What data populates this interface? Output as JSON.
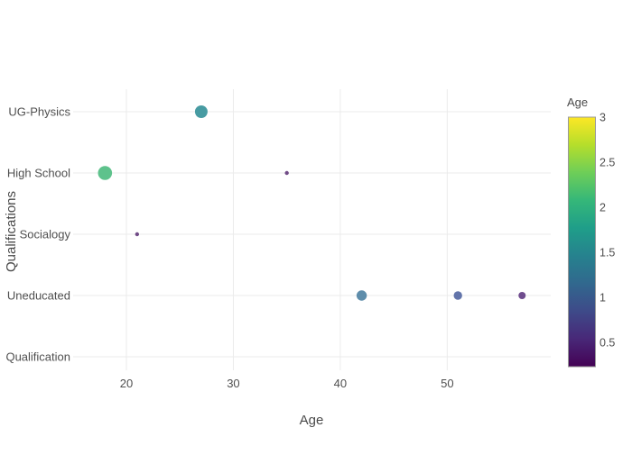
{
  "figure": {
    "background": "#ffffff",
    "gridline_color": "#ebebeb",
    "text_color": "#4f4f4f"
  },
  "chart_data": {
    "type": "scatter",
    "title": "",
    "xlabel": "Age",
    "ylabel": "Qualifications",
    "grid": true,
    "background": "#ffffff",
    "x_ticks": {
      "values": [
        20,
        30,
        40,
        50
      ],
      "labels": [
        "20",
        "30",
        "40",
        "50"
      ]
    },
    "x_range": [
      15,
      59.7
    ],
    "y_categories_top_to_bottom": [
      "UG-Physics",
      "High School",
      "Socialogy",
      "Uneducated",
      "Qualification"
    ],
    "points": [
      {
        "x": 27,
        "category": "UG-Physics",
        "size_value": 1.5,
        "radius_px": 7.0,
        "color": "#479ba2"
      },
      {
        "x": 18,
        "category": "High School",
        "size_value": 2.0,
        "radius_px": 7.8,
        "color": "#5ec28c"
      },
      {
        "x": 35,
        "category": "High School",
        "size_value": 0.3,
        "radius_px": 2.2,
        "color": "#714c87"
      },
      {
        "x": 21,
        "category": "Socialogy",
        "size_value": 0.3,
        "radius_px": 2.2,
        "color": "#714c87"
      },
      {
        "x": 42,
        "category": "Uneducated",
        "size_value": 1.2,
        "radius_px": 5.7,
        "color": "#5e8dab"
      },
      {
        "x": 51,
        "category": "Uneducated",
        "size_value": 1.0,
        "radius_px": 4.7,
        "color": "#6274aa"
      },
      {
        "x": 57,
        "category": "Uneducated",
        "size_value": 0.6,
        "radius_px": 4.0,
        "color": "#6f4c8e"
      }
    ],
    "colorbar": {
      "title": "Age",
      "position": "right",
      "tick_values": [
        3,
        2.5,
        2,
        1.5,
        1,
        0.5
      ],
      "tick_labels": [
        "3",
        "2.5",
        "2",
        "1.5",
        "1",
        "0.5"
      ],
      "value_range": [
        0.23,
        3
      ],
      "colorscale_name": "viridis",
      "gradient_stops_bottom_to_top": [
        "#440154",
        "#482878",
        "#3e4a89",
        "#31688e",
        "#26828e",
        "#1f9e89",
        "#35b779",
        "#6ece58",
        "#b5de2b",
        "#fde725"
      ]
    }
  }
}
